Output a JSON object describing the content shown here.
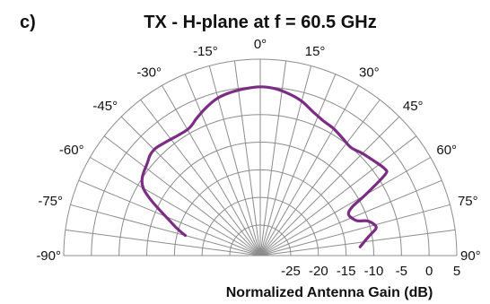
{
  "panel_label": "c)",
  "colors": {
    "pattern": "#7b2d83",
    "grid": "#8c8c8c",
    "text": "#111111"
  },
  "chart_data": {
    "type": "polar-line",
    "title": "TX - H-plane at f = 60.5 GHz",
    "radial_label": "Normalized Antenna Gain (dB)",
    "angle_unit": "deg",
    "angle_range": [
      -90,
      90
    ],
    "angle_ticks": [
      "-90°",
      "-75°",
      "-60°",
      "-45°",
      "-30°",
      "-15°",
      "0°",
      "15°",
      "30°",
      "45°",
      "60°",
      "75°",
      "90°"
    ],
    "angle_tick_values": [
      -90,
      -75,
      -60,
      -45,
      -30,
      -15,
      0,
      15,
      30,
      45,
      60,
      75,
      90
    ],
    "radial_range": [
      -25,
      5
    ],
    "radial_ticks": [
      "-25",
      "-20",
      "-15",
      "-10",
      "-5",
      "0",
      "5"
    ],
    "radial_tick_values": [
      -25,
      -20,
      -15,
      -10,
      -5,
      0,
      5
    ],
    "grid": true,
    "series": [
      {
        "angle_deg": [
          -75,
          -70,
          -60,
          -50,
          -45,
          -40,
          -30,
          -25,
          -20,
          -15,
          -10,
          -5,
          0,
          5,
          10,
          15,
          20,
          25,
          30,
          35,
          40,
          45,
          50,
          55,
          57,
          60,
          62,
          65,
          70,
          72,
          75,
          77,
          80,
          85
        ],
        "gain_db": [
          -16.5,
          -13.6,
          -6.1,
          -4.0,
          -3.4,
          -3.8,
          -4.2,
          -3.2,
          -2.0,
          -1.0,
          -0.5,
          -0.2,
          0,
          -0.2,
          -0.8,
          -1.6,
          -2.8,
          -3.6,
          -4.0,
          -4.6,
          -5.0,
          -4.4,
          -3.8,
          -3.1,
          -3.6,
          -8.6,
          -11.6,
          -12.9,
          -12.0,
          -10.2,
          -9.1,
          -9.1,
          -10.6,
          -12.4
        ]
      }
    ]
  }
}
